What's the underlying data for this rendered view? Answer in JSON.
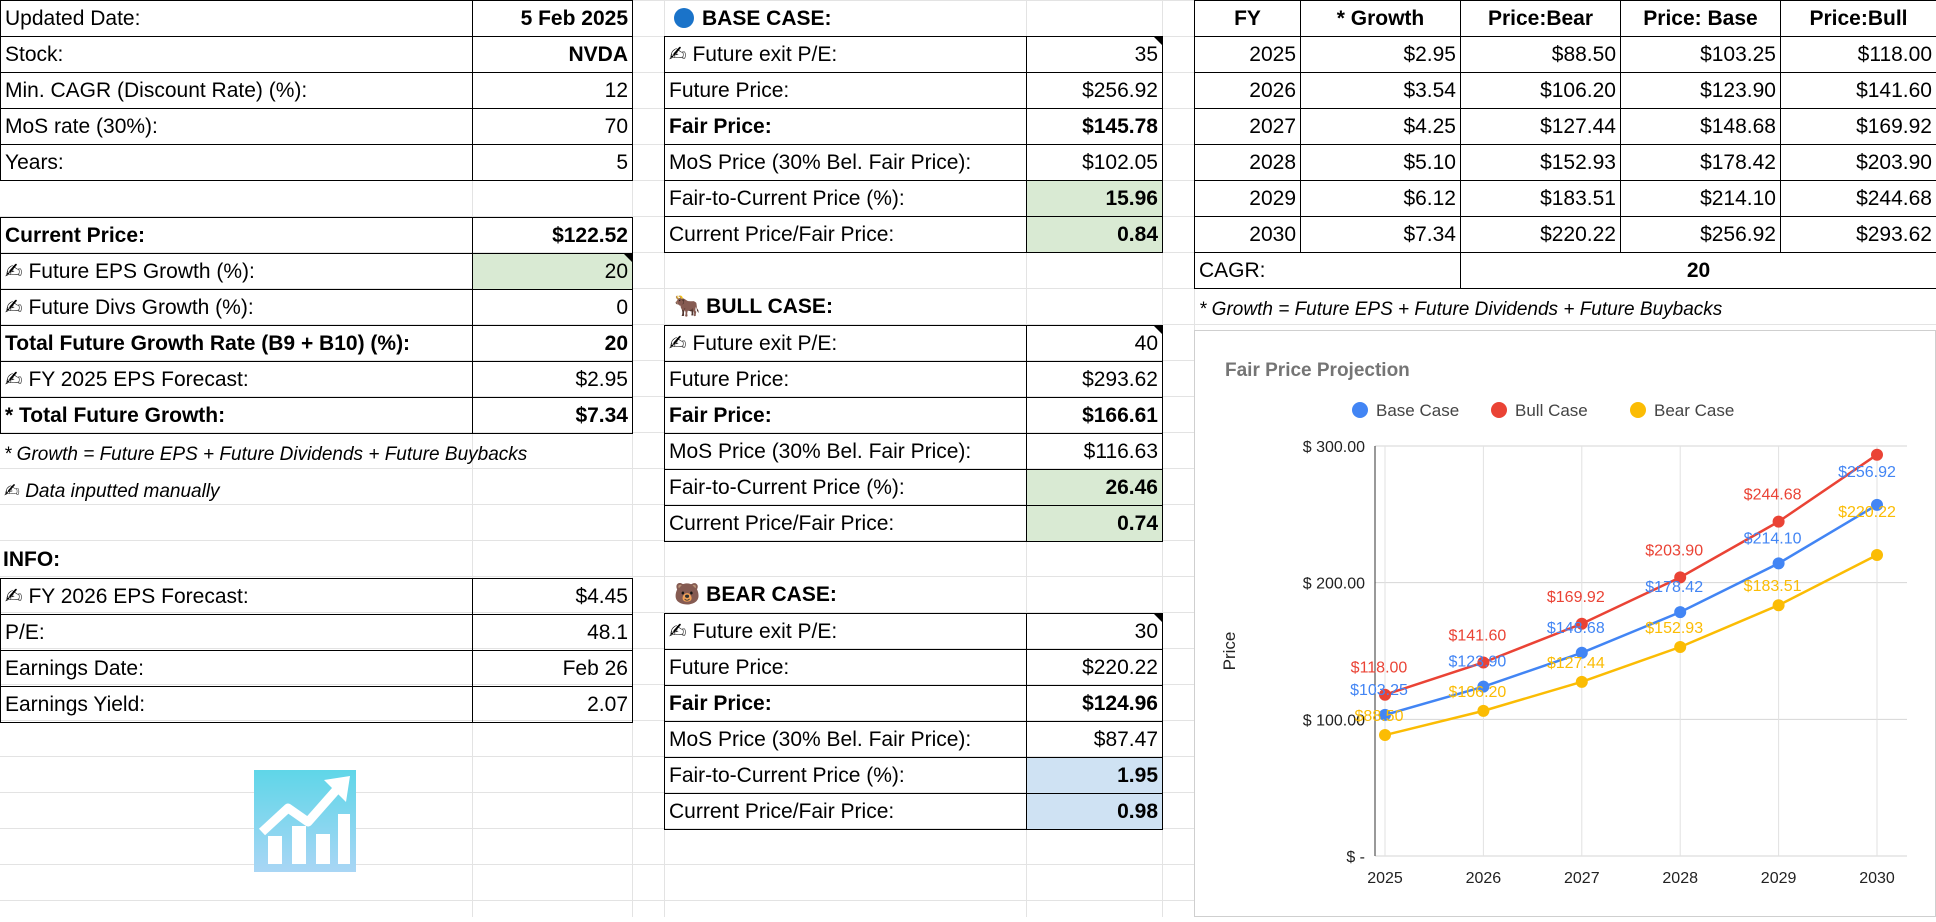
{
  "left": {
    "rows": [
      {
        "label": "Updated Date:",
        "value": "5 Feb 2025",
        "bold_value": true
      },
      {
        "label": "Stock:",
        "value": "NVDA",
        "bold_value": true
      },
      {
        "label": "Min. CAGR (Discount Rate) (%):",
        "value": "12"
      },
      {
        "label": "MoS rate (30%):",
        "value": "70"
      },
      {
        "label": "Years:",
        "value": "5"
      }
    ],
    "current_price_label": "Current Price:",
    "current_price": "$122.52",
    "eps_growth_label": "Future EPS Growth (%):",
    "eps_growth": "20",
    "divs_growth_label": "Future Divs Growth (%):",
    "divs_growth": "0",
    "total_growth_rate_label": "Total Future Growth Rate (B9 + B10) (%):",
    "total_growth_rate": "20",
    "eps_forecast_label": "FY 2025 EPS Forecast:",
    "eps_forecast": "$2.95",
    "total_future_growth_label": "* Total Future Growth:",
    "total_future_growth": "$7.34",
    "note_growth": "* Growth = Future EPS + Future Dividends + Future Buybacks",
    "note_manual": "Data inputted manually",
    "info_title": "INFO:",
    "info_rows": [
      {
        "label": "FY 2026 EPS Forecast:",
        "value": "$4.45",
        "manual": true
      },
      {
        "label": "P/E:",
        "value": "48.1"
      },
      {
        "label": "Earnings Date:",
        "value": "Feb 26"
      },
      {
        "label": "Earnings Yield:",
        "value": "2.07"
      }
    ]
  },
  "base_case": {
    "title": "BASE CASE:",
    "icon": "blue-circle",
    "exit_pe_label": "Future exit P/E:",
    "exit_pe": "35",
    "future_price_label": "Future Price:",
    "future_price": "$256.92",
    "fair_price_label": "Fair Price:",
    "fair_price": "$145.78",
    "mos_price_label": "MoS Price (30% Bel. Fair Price):",
    "mos_price": "$102.05",
    "fair_to_current_label": "Fair-to-Current Price (%):",
    "fair_to_current": "15.96",
    "current_fair_label": "Current Price/Fair Price:",
    "current_fair": "0.84"
  },
  "bull_case": {
    "title": "BULL CASE:",
    "icon": "ox",
    "exit_pe_label": "Future exit P/E:",
    "exit_pe": "40",
    "future_price_label": "Future Price:",
    "future_price": "$293.62",
    "fair_price_label": "Fair Price:",
    "fair_price": "$166.61",
    "mos_price_label": "MoS Price (30% Bel. Fair Price):",
    "mos_price": "$116.63",
    "fair_to_current_label": "Fair-to-Current Price (%):",
    "fair_to_current": "26.46",
    "current_fair_label": "Current Price/Fair Price:",
    "current_fair": "0.74"
  },
  "bear_case": {
    "title": "BEAR CASE:",
    "icon": "bear",
    "exit_pe_label": "Future exit P/E:",
    "exit_pe": "30",
    "future_price_label": "Future Price:",
    "future_price": "$220.22",
    "fair_price_label": "Fair Price:",
    "fair_price": "$124.96",
    "mos_price_label": "MoS Price (30% Bel. Fair Price):",
    "mos_price": "$87.47",
    "fair_to_current_label": "Fair-to-Current Price (%):",
    "fair_to_current": "1.95",
    "current_fair_label": "Current Price/Fair Price:",
    "current_fair": "0.98"
  },
  "projection_table": {
    "headers": [
      "FY",
      "* Growth",
      "Price:Bear",
      "Price: Base",
      "Price:Bull"
    ],
    "rows": [
      [
        "2025",
        "$2.95",
        "$88.50",
        "$103.25",
        "$118.00"
      ],
      [
        "2026",
        "$3.54",
        "$106.20",
        "$123.90",
        "$141.60"
      ],
      [
        "2027",
        "$4.25",
        "$127.44",
        "$148.68",
        "$169.92"
      ],
      [
        "2028",
        "$5.10",
        "$152.93",
        "$178.42",
        "$203.90"
      ],
      [
        "2029",
        "$6.12",
        "$183.51",
        "$214.10",
        "$244.68"
      ],
      [
        "2030",
        "$7.34",
        "$220.22",
        "$256.92",
        "$293.62"
      ]
    ],
    "cagr_label": "CAGR:",
    "cagr_value": "20",
    "note": "* Growth = Future EPS + Future Dividends + Future Buybacks"
  },
  "colors": {
    "base": "#4285f4",
    "bull": "#ea4335",
    "bear": "#fbbc04",
    "input_green": "#d9ead3",
    "input_blue": "#cfe2f3"
  },
  "chart_data": {
    "type": "line",
    "title": "Fair Price Projection",
    "xlabel": "",
    "ylabel": "Price",
    "x": [
      "2025",
      "2026",
      "2027",
      "2028",
      "2029",
      "2030"
    ],
    "ylim": [
      0,
      300
    ],
    "y_ticks": [
      "$ -",
      "$ 100.00",
      "$ 200.00",
      "$ 300.00"
    ],
    "legend_position": "top",
    "grid": true,
    "series": [
      {
        "name": "Base Case",
        "color": "#4285f4",
        "values": [
          103.25,
          123.9,
          148.68,
          178.42,
          214.1,
          256.92
        ],
        "labels": [
          "$103.25",
          "$123.90",
          "$148.68",
          "$178.42",
          "$214.10",
          "$256.92"
        ]
      },
      {
        "name": "Bull Case",
        "color": "#ea4335",
        "values": [
          118.0,
          141.6,
          169.92,
          203.9,
          244.68,
          293.62
        ],
        "labels": [
          "$118.00",
          "$141.60",
          "$169.92",
          "$203.90",
          "$244.68",
          ""
        ]
      },
      {
        "name": "Bear Case",
        "color": "#fbbc04",
        "values": [
          88.5,
          106.2,
          127.44,
          152.93,
          183.51,
          220.22
        ],
        "labels": [
          "$88.50",
          "$106.20",
          "$127.44",
          "$152.93",
          "$183.51",
          "$220.22"
        ]
      }
    ]
  }
}
